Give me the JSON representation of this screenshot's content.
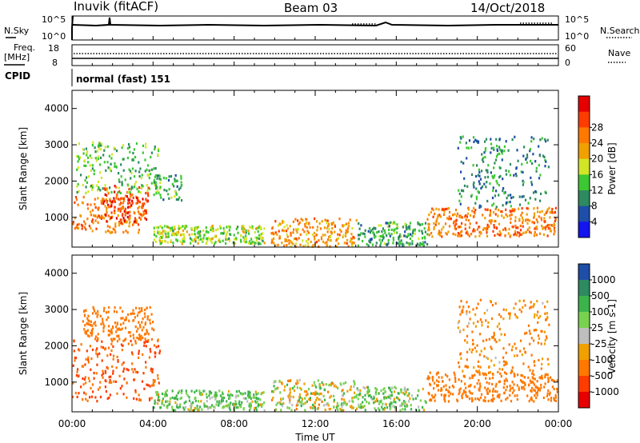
{
  "header": {
    "station": "Inuvik (fitACF)",
    "beam": "Beam 03",
    "date": "14/Oct/2018"
  },
  "sky_panel": {
    "left_label": "N.Sky",
    "right_label": "N.Search",
    "left_ticks": [
      "10^5",
      "10^0"
    ],
    "right_ticks": [
      "10^5",
      "10^0"
    ]
  },
  "freq_panel": {
    "left_label_line1": "Freq.",
    "left_label_line2": "[MHz]",
    "right_label": "Nave",
    "left_ticks": [
      "18",
      "8"
    ],
    "right_ticks": [
      "60",
      "0"
    ]
  },
  "cpid": {
    "label": "CPID",
    "value": "normal (fast) 151"
  },
  "chart_data": [
    {
      "type": "heatmap",
      "name": "power",
      "ylabel": "Slant Range [km]",
      "ylim": [
        180,
        4500
      ],
      "yticks": [
        "1000",
        "2000",
        "3000",
        "4000"
      ],
      "colorbar_label": "Power [dB]",
      "colorbar_ticks": [
        "4",
        "8",
        "12",
        "16",
        "20",
        "24",
        "28"
      ],
      "colors": [
        "#1414f0",
        "#1e4ea8",
        "#2e8a60",
        "#3cc832",
        "#d2e628",
        "#f0a000",
        "#ff7800",
        "#ff3c00",
        "#e60000"
      ],
      "echo_regions": [
        {
          "t0": 0.0,
          "t1": 3.5,
          "r0": 600,
          "r1": 1600,
          "level": 24
        },
        {
          "t0": 1.5,
          "t1": 3.8,
          "r0": 900,
          "r1": 1900,
          "level": 28
        },
        {
          "t0": 0.2,
          "t1": 4.3,
          "r0": 1700,
          "r1": 3100,
          "level": 12
        },
        {
          "t0": 4.0,
          "t1": 5.4,
          "r0": 1500,
          "r1": 2200,
          "level": 10
        },
        {
          "t0": 4.0,
          "t1": 9.5,
          "r0": 300,
          "r1": 800,
          "level": 14
        },
        {
          "t0": 9.8,
          "t1": 14.0,
          "r0": 200,
          "r1": 1000,
          "level": 22
        },
        {
          "t0": 14.0,
          "t1": 17.5,
          "r0": 250,
          "r1": 900,
          "level": 10
        },
        {
          "t0": 17.5,
          "t1": 24.0,
          "r0": 500,
          "r1": 1300,
          "level": 24
        },
        {
          "t0": 19.0,
          "t1": 23.5,
          "r0": 1300,
          "r1": 3300,
          "level": 8
        }
      ]
    },
    {
      "type": "heatmap",
      "name": "velocity",
      "ylabel": "Slant Range [km]",
      "ylim": [
        180,
        4500
      ],
      "yticks": [
        "1000",
        "2000",
        "3000",
        "4000"
      ],
      "colorbar_label": "Velocity [m s-1]",
      "colorbar_ticks": [
        "1000",
        "500",
        "100",
        "25",
        "-25",
        "-100",
        "-500",
        "-1000"
      ],
      "colors": [
        "#1e4ea8",
        "#2e8a60",
        "#3cb44b",
        "#78d250",
        "#bebebe",
        "#f0a000",
        "#ff7800",
        "#ff3c00",
        "#e60000"
      ],
      "echo_regions": [
        {
          "t0": 0.0,
          "t1": 4.3,
          "r0": 500,
          "r1": 2200,
          "level": -300
        },
        {
          "t0": 0.5,
          "t1": 4.0,
          "r0": 2200,
          "r1": 3100,
          "level": -150
        },
        {
          "t0": 4.0,
          "t1": 9.5,
          "r0": 250,
          "r1": 800,
          "level": 60
        },
        {
          "t0": 9.8,
          "t1": 14.0,
          "r0": 250,
          "r1": 1100,
          "level": 0
        },
        {
          "t0": 14.0,
          "t1": 17.5,
          "r0": 250,
          "r1": 900,
          "level": 40
        },
        {
          "t0": 17.5,
          "t1": 24.0,
          "r0": 500,
          "r1": 1300,
          "level": -200
        },
        {
          "t0": 19.0,
          "t1": 23.5,
          "r0": 1300,
          "r1": 3300,
          "level": -80
        }
      ]
    }
  ],
  "time_axis": {
    "xlabel": "Time UT",
    "xlim": [
      0,
      24
    ],
    "ticks": [
      "00:00",
      "04:00",
      "08:00",
      "12:00",
      "16:00",
      "20:00",
      "00:00"
    ]
  }
}
